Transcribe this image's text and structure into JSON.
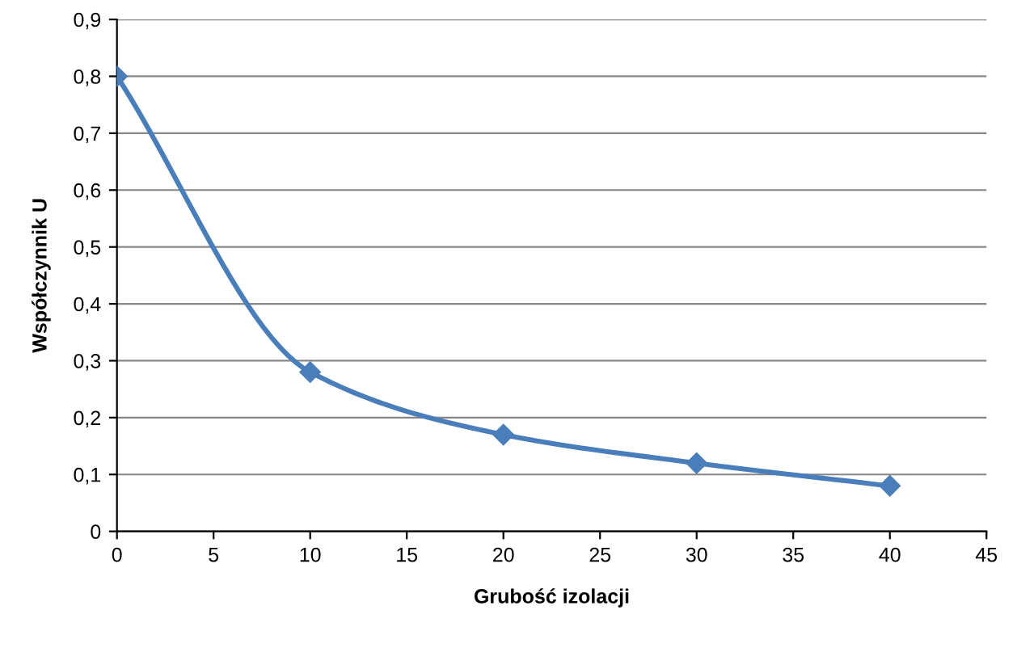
{
  "chart_data": {
    "type": "line",
    "xlabel": "Grubość izolacji",
    "ylabel": "Współczynnik U",
    "x": [
      0,
      10,
      20,
      30,
      40
    ],
    "series": [
      {
        "color": "#4a7ebb",
        "values": [
          0.8,
          0.28,
          0.17,
          0.12,
          0.08
        ]
      }
    ],
    "xlim": [
      0,
      45
    ],
    "xticks": [
      0,
      5,
      10,
      15,
      20,
      25,
      30,
      35,
      40,
      45
    ],
    "ylim": [
      0,
      0.9
    ],
    "yticks": [
      0,
      {
        "value": 0.1,
        "label": "0,1"
      },
      {
        "value": 0.2,
        "label": "0,2"
      },
      {
        "value": 0.3,
        "label": "0,3"
      },
      {
        "value": 0.4,
        "label": "0,4"
      },
      {
        "value": 0.5,
        "label": "0,5"
      },
      {
        "value": 0.6,
        "label": "0,6"
      },
      {
        "value": 0.7,
        "label": "0,7"
      },
      {
        "value": 0.8,
        "label": "0,8"
      },
      {
        "value": 0.9,
        "label": "0,9"
      }
    ],
    "grid": "y",
    "marker": "diamond",
    "line_style": "solid"
  }
}
